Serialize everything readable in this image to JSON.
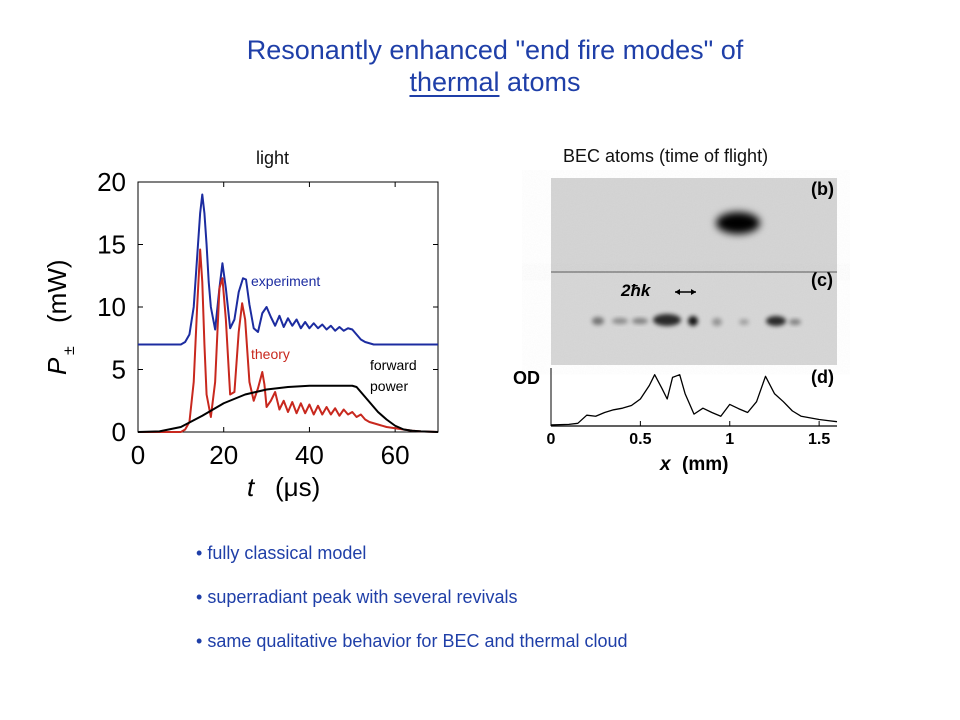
{
  "slide": {
    "title_part1": "Resonantly enhanced \"end fire modes\" of",
    "title_underlined": "thermal",
    "title_rest": "atoms",
    "caption_left": "light",
    "caption_right": "BEC atoms (time of flight)",
    "bullets": [
      "fully classical model",
      "superradiant peak with several revivals",
      "same qualitative behavior for BEC and thermal cloud"
    ]
  },
  "colors": {
    "title": "#1f3fa8",
    "experiment": "#1c2ca0",
    "theory": "#c8281e",
    "forward": "#000000"
  },
  "chart_data": [
    {
      "type": "line",
      "xlabel_var": "t",
      "xlabel_unit": "(μs)",
      "ylabel_var": "P",
      "ylabel_sub": "±",
      "ylabel_unit": "(mW)",
      "xlim": [
        0,
        70
      ],
      "ylim": [
        0,
        20
      ],
      "xticks": [
        0,
        20,
        40,
        60
      ],
      "yticks": [
        0,
        5,
        10,
        15,
        20
      ],
      "annotations": {
        "experiment": "experiment",
        "theory": "theory",
        "forward": "forward",
        "power": "power"
      },
      "series": [
        {
          "key": "experiment",
          "x": [
            0,
            8,
            10,
            11,
            12,
            13,
            14,
            14.5,
            15,
            15.5,
            16,
            16.5,
            17,
            18,
            19,
            19.7,
            20.5,
            21.5,
            22.5,
            23.5,
            24.5,
            25.2,
            26,
            27,
            28,
            29,
            30,
            31,
            32,
            33,
            34,
            35,
            36,
            37,
            38,
            39,
            40,
            41,
            42,
            43,
            44,
            45,
            46,
            47,
            48,
            49,
            50,
            51,
            52,
            53,
            54,
            55,
            70
          ],
          "y": [
            7,
            7,
            7,
            7.2,
            7.8,
            10,
            15,
            17.5,
            19,
            17.5,
            15,
            12,
            10,
            8.2,
            11.5,
            13.5,
            11.5,
            8.3,
            9,
            11.2,
            12.3,
            12.2,
            10.2,
            8.3,
            8,
            9.5,
            10,
            9.2,
            8.5,
            9.3,
            8.4,
            9.1,
            8.5,
            9,
            8.3,
            8.8,
            8.3,
            8.7,
            8.3,
            8.6,
            8.2,
            8.5,
            8.1,
            8.4,
            8.1,
            8.3,
            8.2,
            7.8,
            7.4,
            7.2,
            7.1,
            7,
            7
          ]
        },
        {
          "key": "theory",
          "x": [
            0,
            10,
            11,
            12,
            13,
            13.8,
            14.5,
            15,
            15.5,
            16,
            17,
            18,
            19,
            19.7,
            20.5,
            21.5,
            22.5,
            23.5,
            24.3,
            25,
            26,
            27,
            28,
            29,
            29.5,
            30,
            31,
            32,
            33,
            34,
            35,
            36,
            37,
            38,
            39,
            40,
            41,
            42,
            43,
            44,
            45,
            46,
            47,
            48,
            49,
            50,
            51,
            52,
            53,
            54,
            56,
            58,
            60,
            62,
            64,
            66,
            70
          ],
          "y": [
            0,
            0,
            0.2,
            0.8,
            4,
            10,
            14.6,
            12,
            7,
            3,
            1.2,
            4,
            11.5,
            12.3,
            9,
            3,
            3.2,
            8,
            10.3,
            9,
            4,
            2.5,
            3.5,
            4.8,
            3.8,
            2,
            2.5,
            3.2,
            1.8,
            2.5,
            1.6,
            2.4,
            1.5,
            2.3,
            1.5,
            2.2,
            1.4,
            2.1,
            1.4,
            2,
            1.4,
            1.9,
            1.3,
            1.8,
            1.4,
            1.6,
            1.2,
            1.4,
            1,
            0.8,
            0.6,
            0.4,
            0.3,
            0.2,
            0.1,
            0.05,
            0
          ]
        },
        {
          "key": "forward",
          "x": [
            0,
            5,
            10,
            15,
            20,
            25,
            30,
            35,
            40,
            45,
            48,
            50,
            51,
            52,
            54,
            56,
            58,
            60,
            62,
            64,
            66,
            70
          ],
          "y": [
            0,
            0.05,
            0.4,
            1.3,
            2.3,
            3,
            3.4,
            3.6,
            3.7,
            3.7,
            3.7,
            3.7,
            3.6,
            3.2,
            2.4,
            1.6,
            1,
            0.5,
            0.2,
            0.1,
            0.05,
            0
          ]
        }
      ]
    },
    {
      "type": "line",
      "xlabel_var": "x",
      "xlabel_unit": "(mm)",
      "ylabel": "OD",
      "xlim": [
        0,
        1.6
      ],
      "xticks": [
        0,
        0.5,
        1,
        1.5
      ],
      "xtick_labels": [
        "0",
        "0.5",
        "1",
        "1.5"
      ],
      "panel_labels": [
        "(b)",
        "(c)",
        "(d)"
      ],
      "annotation": "2ħk",
      "series": [
        {
          "key": "od",
          "x": [
            0,
            0.1,
            0.15,
            0.2,
            0.25,
            0.3,
            0.35,
            0.4,
            0.45,
            0.5,
            0.55,
            0.58,
            0.62,
            0.65,
            0.68,
            0.72,
            0.75,
            0.8,
            0.85,
            0.9,
            0.95,
            1.0,
            1.05,
            1.1,
            1.15,
            1.2,
            1.25,
            1.3,
            1.35,
            1.4,
            1.45,
            1.5,
            1.55,
            1.6
          ],
          "y": [
            0.02,
            0.03,
            0.05,
            0.2,
            0.18,
            0.25,
            0.3,
            0.33,
            0.38,
            0.5,
            0.75,
            0.95,
            0.7,
            0.5,
            0.9,
            0.95,
            0.6,
            0.22,
            0.33,
            0.25,
            0.18,
            0.4,
            0.32,
            0.25,
            0.45,
            0.92,
            0.6,
            0.45,
            0.28,
            0.18,
            0.15,
            0.12,
            0.1,
            0.08
          ]
        }
      ]
    }
  ]
}
